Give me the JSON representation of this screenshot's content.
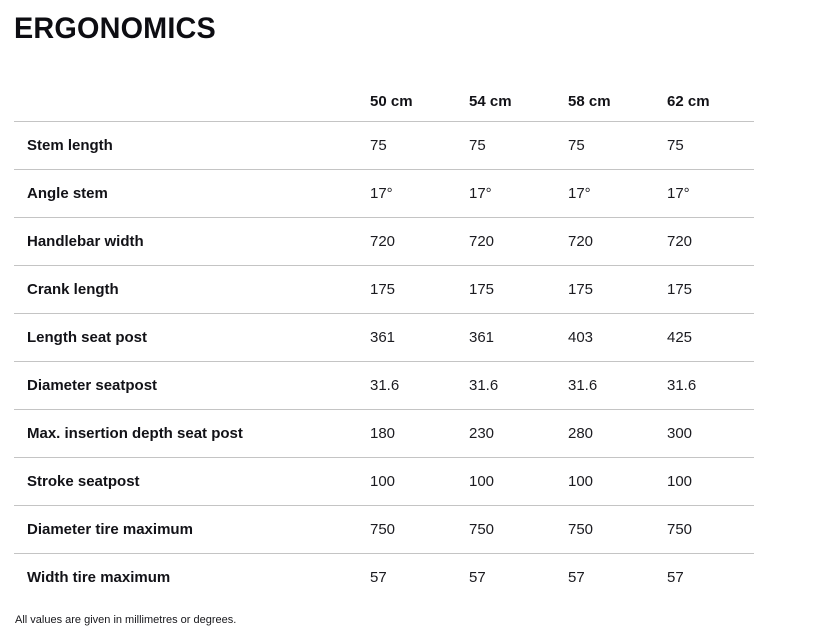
{
  "title": "ERGONOMICS",
  "table": {
    "columns": [
      "50 cm",
      "54 cm",
      "58 cm",
      "62 cm"
    ],
    "rows": [
      {
        "label": "Stem length",
        "values": [
          "75",
          "75",
          "75",
          "75"
        ]
      },
      {
        "label": "Angle stem",
        "values": [
          "17°",
          "17°",
          "17°",
          "17°"
        ]
      },
      {
        "label": "Handlebar width",
        "values": [
          "720",
          "720",
          "720",
          "720"
        ]
      },
      {
        "label": "Crank length",
        "values": [
          "175",
          "175",
          "175",
          "175"
        ]
      },
      {
        "label": "Length seat post",
        "values": [
          "361",
          "361",
          "403",
          "425"
        ]
      },
      {
        "label": "Diameter seatpost",
        "values": [
          "31.6",
          "31.6",
          "31.6",
          "31.6"
        ]
      },
      {
        "label": "Max. insertion depth seat post",
        "values": [
          "180",
          "230",
          "280",
          "300"
        ]
      },
      {
        "label": "Stroke seatpost",
        "values": [
          "100",
          "100",
          "100",
          "100"
        ]
      },
      {
        "label": "Diameter tire maximum",
        "values": [
          "750",
          "750",
          "750",
          "750"
        ]
      },
      {
        "label": "Width tire maximum",
        "values": [
          "57",
          "57",
          "57",
          "57"
        ]
      }
    ]
  },
  "footnote": "All values are given in millimetres or degrees.",
  "colors": {
    "background": "#ffffff",
    "text": "#121217",
    "divider": "#c4c4c4"
  }
}
